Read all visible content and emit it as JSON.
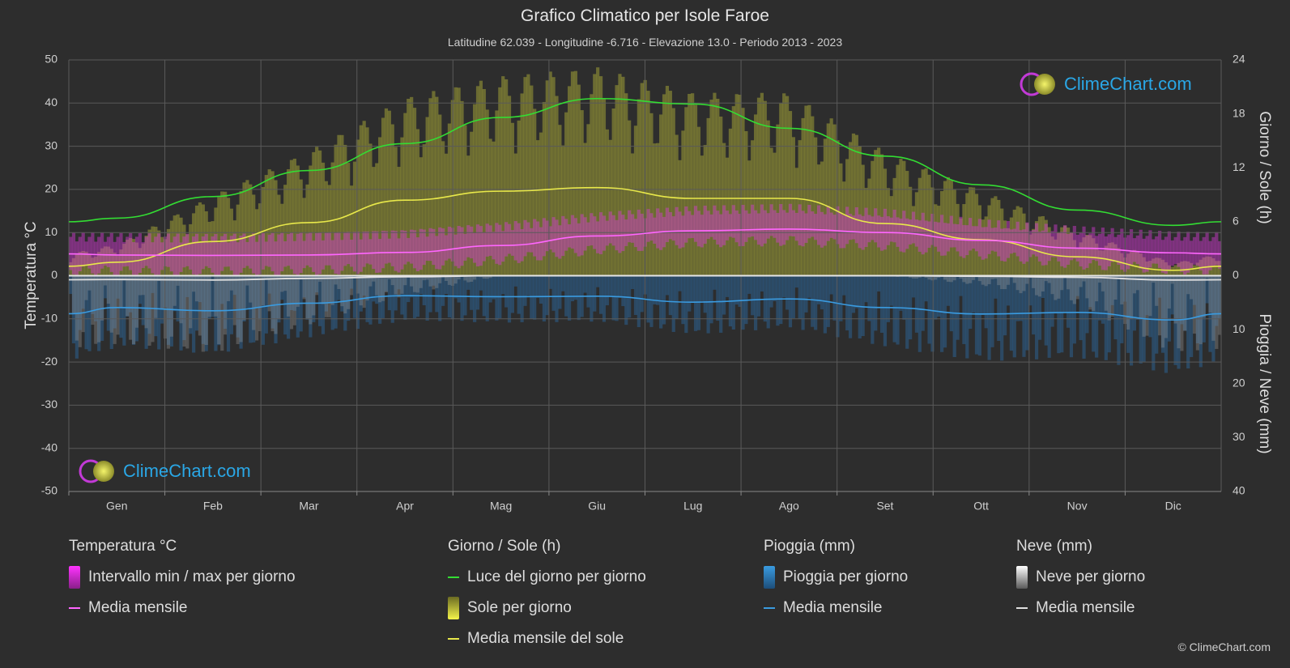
{
  "header": {
    "title": "Grafico Climatico per Isole Faroe",
    "subtitle": "Latitudine 62.039 - Longitudine -6.716 - Elevazione 13.0 - Periodo 2013 - 2023"
  },
  "logo": {
    "text": "ClimeChart.com"
  },
  "copyright": "© ClimeChart.com",
  "colors": {
    "background": "#2d2d2d",
    "temp_range": "#d63ad6",
    "temp_mean": "#ff66ff",
    "daylight": "#33dd33",
    "sunshine_bar": "#b8b83a",
    "sunshine_mean": "#e8e84a",
    "rain_bar": "#2b7fc9",
    "rain_mean": "#3a9be0",
    "snow_bar": "#9a9a9a",
    "snow_mean": "#e0e0e0"
  },
  "legend": {
    "temperature": {
      "title": "Temperatura °C",
      "range": "Intervallo min / max per giorno",
      "mean": "Media mensile"
    },
    "sun": {
      "title": "Giorno / Sole (h)",
      "daylight": "Luce del giorno per giorno",
      "sunshine": "Sole per giorno",
      "sunshine_mean": "Media mensile del sole"
    },
    "rain": {
      "title": "Pioggia (mm)",
      "daily": "Pioggia per giorno",
      "mean": "Media mensile"
    },
    "snow": {
      "title": "Neve (mm)",
      "daily": "Neve per giorno",
      "mean": "Media mensile"
    }
  },
  "chart_data": {
    "type": "line",
    "categories": [
      "Gen",
      "Feb",
      "Mar",
      "Apr",
      "Mag",
      "Giu",
      "Lug",
      "Ago",
      "Set",
      "Ott",
      "Nov",
      "Dic"
    ],
    "y_left": {
      "label": "Temperatura °C",
      "range": [
        -50,
        50
      ],
      "ticks": [
        "50",
        "40",
        "30",
        "20",
        "10",
        "0",
        "-10",
        "-20",
        "-30",
        "-40",
        "-50"
      ]
    },
    "y_right_top": {
      "label": "Giorno / Sole (h)",
      "range": [
        0,
        24
      ],
      "ticks": [
        "24",
        "18",
        "12",
        "6",
        "0"
      ]
    },
    "y_right_bottom": {
      "label": "Pioggia / Neve (mm)",
      "range": [
        0,
        40
      ],
      "ticks": [
        "10",
        "20",
        "30",
        "40"
      ]
    },
    "grid": true,
    "series": [
      {
        "name": "Media mensile",
        "axis": "temperature",
        "values": [
          4.8,
          4.7,
          4.8,
          5.4,
          7.0,
          9.2,
          10.4,
          10.8,
          10.0,
          8.2,
          6.4,
          5.3
        ]
      },
      {
        "name": "Intervallo min / max per giorno",
        "axis": "temperature",
        "min": [
          2.6,
          2.5,
          2.7,
          3.5,
          5.2,
          7.6,
          9.2,
          9.6,
          8.4,
          6.4,
          4.2,
          3.0
        ],
        "max": [
          7.4,
          7.3,
          7.8,
          8.4,
          10.0,
          12.2,
          13.6,
          14.0,
          12.8,
          10.4,
          8.8,
          7.6
        ]
      },
      {
        "name": "Luce del giorno per giorno",
        "axis": "sun",
        "values": [
          6.4,
          8.8,
          11.7,
          14.7,
          17.6,
          19.7,
          19.1,
          16.4,
          13.3,
          10.1,
          7.3,
          5.6
        ]
      },
      {
        "name": "Media mensile del sole",
        "axis": "sun",
        "values": [
          1.5,
          3.8,
          5.9,
          8.4,
          9.4,
          9.8,
          8.6,
          8.6,
          5.8,
          4.0,
          2.1,
          0.6
        ]
      },
      {
        "name": "Pioggia media mensile",
        "axis": "rain",
        "values": [
          5.9,
          6.5,
          5.1,
          3.7,
          3.9,
          3.8,
          4.9,
          4.3,
          5.9,
          7.1,
          6.8,
          8.2
        ]
      },
      {
        "name": "Neve media mensile",
        "axis": "rain",
        "values": [
          0.7,
          0.8,
          0.5,
          0.2,
          0.0,
          0.0,
          0.0,
          0.0,
          0.0,
          0.1,
          0.3,
          0.8
        ]
      }
    ]
  }
}
